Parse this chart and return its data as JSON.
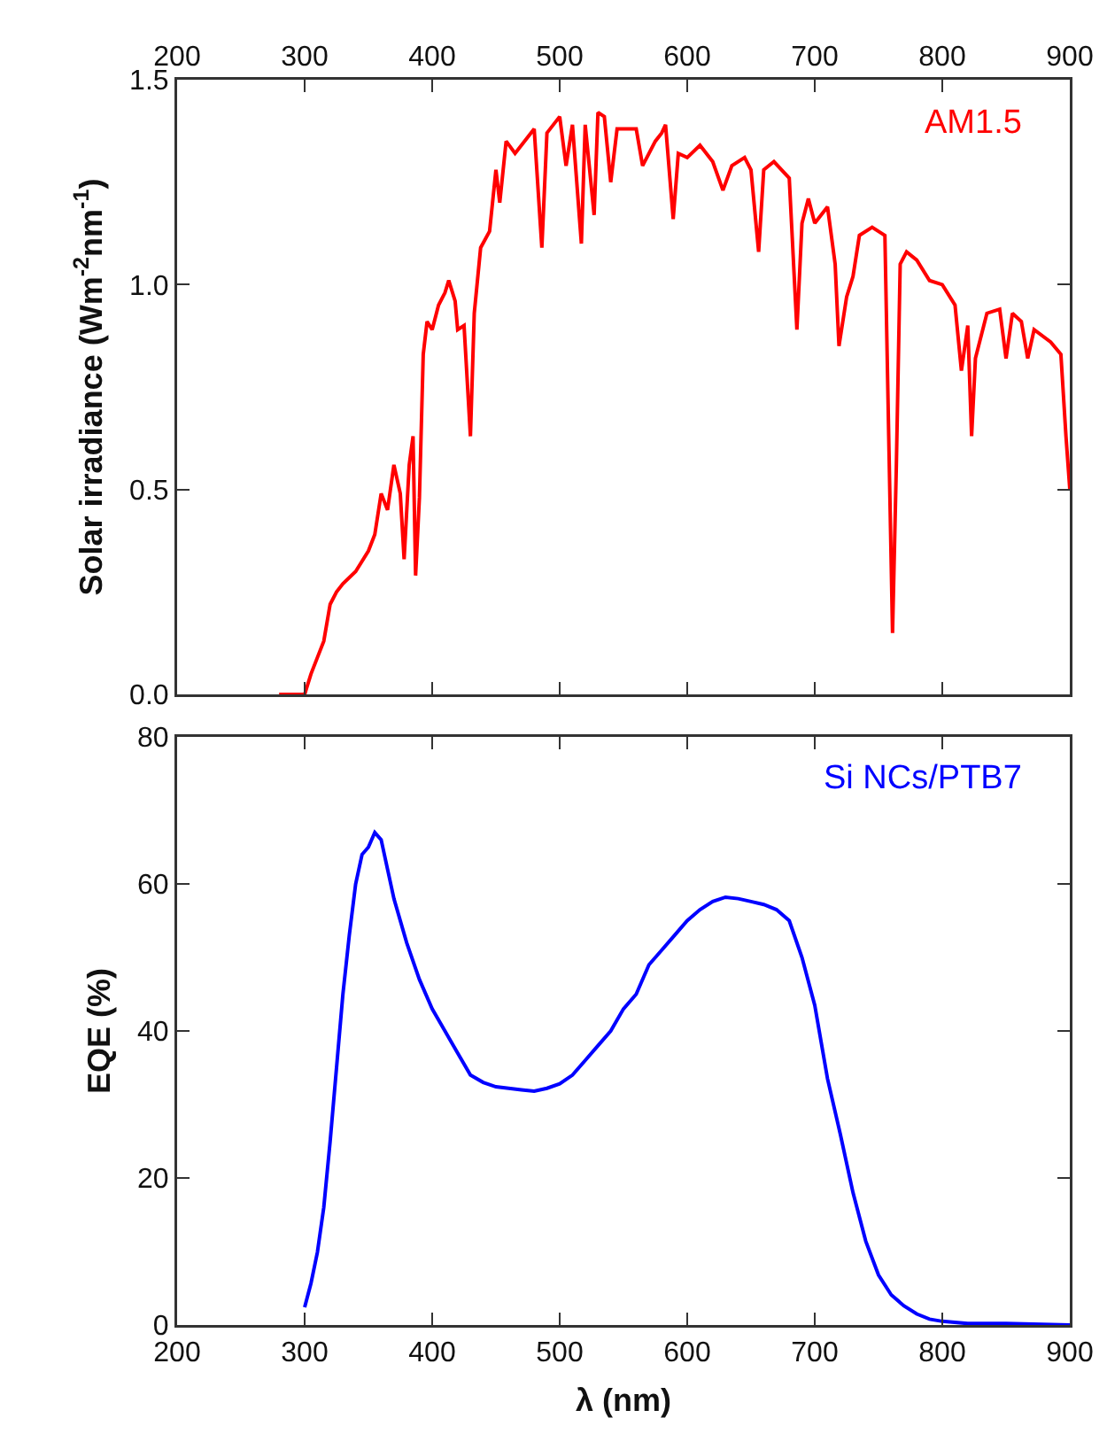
{
  "chart_data": [
    {
      "type": "line",
      "ylabel": "Solar irradiance (Wm$^{-2}$nm$^{-1}$)",
      "annotations": [
        "AM1.5"
      ],
      "x": [
        280,
        295,
        300,
        305,
        310,
        315,
        320,
        325,
        330,
        340,
        350,
        355,
        360,
        365,
        370,
        375,
        378,
        382,
        385,
        387,
        390,
        393,
        396,
        400,
        405,
        410,
        413,
        418,
        420,
        425,
        430,
        433,
        438,
        445,
        450,
        453,
        458,
        465,
        475,
        480,
        486,
        490,
        500,
        505,
        510,
        517,
        520,
        527,
        530,
        535,
        540,
        545,
        560,
        565,
        575,
        580,
        583,
        589,
        593,
        600,
        610,
        620,
        628,
        635,
        645,
        650,
        656,
        660,
        668,
        680,
        686,
        690,
        695,
        700,
        710,
        716,
        719,
        725,
        730,
        735,
        745,
        755,
        758,
        761,
        764,
        767,
        772,
        780,
        790,
        800,
        810,
        815,
        820,
        823,
        826,
        835,
        845,
        850,
        855,
        862,
        867,
        872,
        885,
        893,
        897,
        900
      ],
      "series": [
        {
          "color": "#ff0000",
          "values": [
            0,
            0,
            0,
            0.05,
            0.09,
            0.13,
            0.22,
            0.25,
            0.27,
            0.3,
            0.35,
            0.39,
            0.49,
            0.45,
            0.56,
            0.49,
            0.33,
            0.56,
            0.63,
            0.29,
            0.48,
            0.83,
            0.91,
            0.89,
            0.95,
            0.98,
            1.01,
            0.96,
            0.89,
            0.9,
            0.63,
            0.93,
            1.09,
            1.13,
            1.28,
            1.2,
            1.35,
            1.32,
            1.36,
            1.38,
            1.09,
            1.37,
            1.41,
            1.29,
            1.39,
            1.1,
            1.39,
            1.17,
            1.42,
            1.41,
            1.25,
            1.38,
            1.38,
            1.29,
            1.35,
            1.37,
            1.39,
            1.16,
            1.32,
            1.31,
            1.34,
            1.3,
            1.23,
            1.29,
            1.31,
            1.28,
            1.08,
            1.28,
            1.3,
            1.26,
            0.89,
            1.15,
            1.21,
            1.15,
            1.19,
            1.05,
            0.85,
            0.97,
            1.02,
            1.12,
            1.14,
            1.12,
            0.63,
            0.15,
            0.56,
            1.05,
            1.08,
            1.06,
            1.01,
            1,
            0.95,
            0.79,
            0.9,
            0.63,
            0.82,
            0.93,
            0.94,
            0.82,
            0.93,
            0.91,
            0.82,
            0.89,
            0.86,
            0.83,
            0.63,
            0.5
          ]
        }
      ],
      "xlim": [
        200,
        900
      ],
      "xticks": [
        200,
        300,
        400,
        500,
        600,
        700,
        800,
        900
      ],
      "ylim": [
        0,
        1.5
      ],
      "yticks": [
        {
          "value": 0,
          "label": "0.0"
        },
        0.5,
        {
          "value": 1,
          "label": "1.0"
        },
        1.5
      ],
      "grid": false
    },
    {
      "type": "line",
      "xlabel": "λ (nm)",
      "ylabel": "EQE (%)",
      "annotations": [
        "Si NCs/PTB7"
      ],
      "x": [
        300,
        305,
        310,
        315,
        320,
        325,
        330,
        335,
        340,
        345,
        350,
        355,
        360,
        365,
        370,
        380,
        390,
        400,
        410,
        420,
        430,
        440,
        450,
        460,
        470,
        480,
        490,
        500,
        510,
        520,
        530,
        540,
        550,
        560,
        570,
        580,
        590,
        600,
        610,
        620,
        630,
        640,
        650,
        660,
        670,
        680,
        690,
        700,
        710,
        720,
        730,
        740,
        750,
        760,
        770,
        780,
        790,
        800,
        820,
        850,
        900
      ],
      "series": [
        {
          "color": "#0000ff",
          "values": [
            2.4,
            5.7,
            9.9,
            16,
            25,
            35,
            45,
            53,
            60,
            64,
            65,
            67,
            66,
            62,
            58,
            52,
            47,
            43,
            40,
            37,
            34,
            33,
            32.4,
            32.2,
            32,
            31.8,
            32.2,
            32.8,
            34,
            36,
            38,
            40,
            43,
            45,
            49,
            51,
            53,
            55,
            56.5,
            57.6,
            58.2,
            58,
            57.6,
            57.2,
            56.5,
            55,
            50,
            43.5,
            33.5,
            26,
            18,
            11.4,
            6.8,
            4.1,
            2.6,
            1.5,
            0.8,
            0.5,
            0.2,
            0.2,
            0
          ]
        }
      ],
      "xlim": [
        200,
        900
      ],
      "xticks": [
        200,
        300,
        400,
        500,
        600,
        700,
        800,
        900
      ],
      "ylim": [
        0,
        80
      ],
      "yticks": [
        0,
        20,
        40,
        60,
        80
      ],
      "grid": false
    }
  ]
}
